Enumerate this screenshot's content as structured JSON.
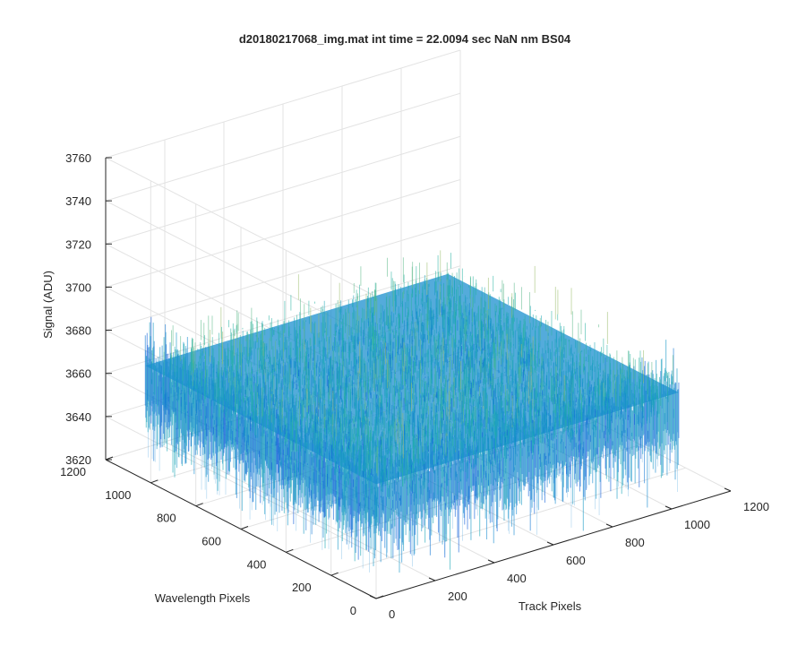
{
  "chart_data": {
    "type": "surface",
    "title": "d20180217068_img.mat int time = 22.0094 sec  NaN nm BS04",
    "xlabel": "Track Pixels",
    "ylabel": "Wavelength Pixels",
    "zlabel": "Signal (ADU)",
    "xlim": [
      0,
      1200
    ],
    "ylim": [
      0,
      1200
    ],
    "zlim": [
      3620,
      3760
    ],
    "xticks": [
      0,
      200,
      400,
      600,
      800,
      1000,
      1200
    ],
    "yticks": [
      0,
      200,
      400,
      600,
      800,
      1000,
      1200
    ],
    "zticks": [
      3620,
      3640,
      3660,
      3680,
      3700,
      3720,
      3740,
      3760
    ],
    "surface_extent_x": [
      0,
      1024
    ],
    "surface_extent_y": [
      0,
      1024
    ],
    "mean_signal": 3665,
    "noise_range": [
      3630,
      3705
    ],
    "grid": true,
    "colormap": "parula"
  }
}
